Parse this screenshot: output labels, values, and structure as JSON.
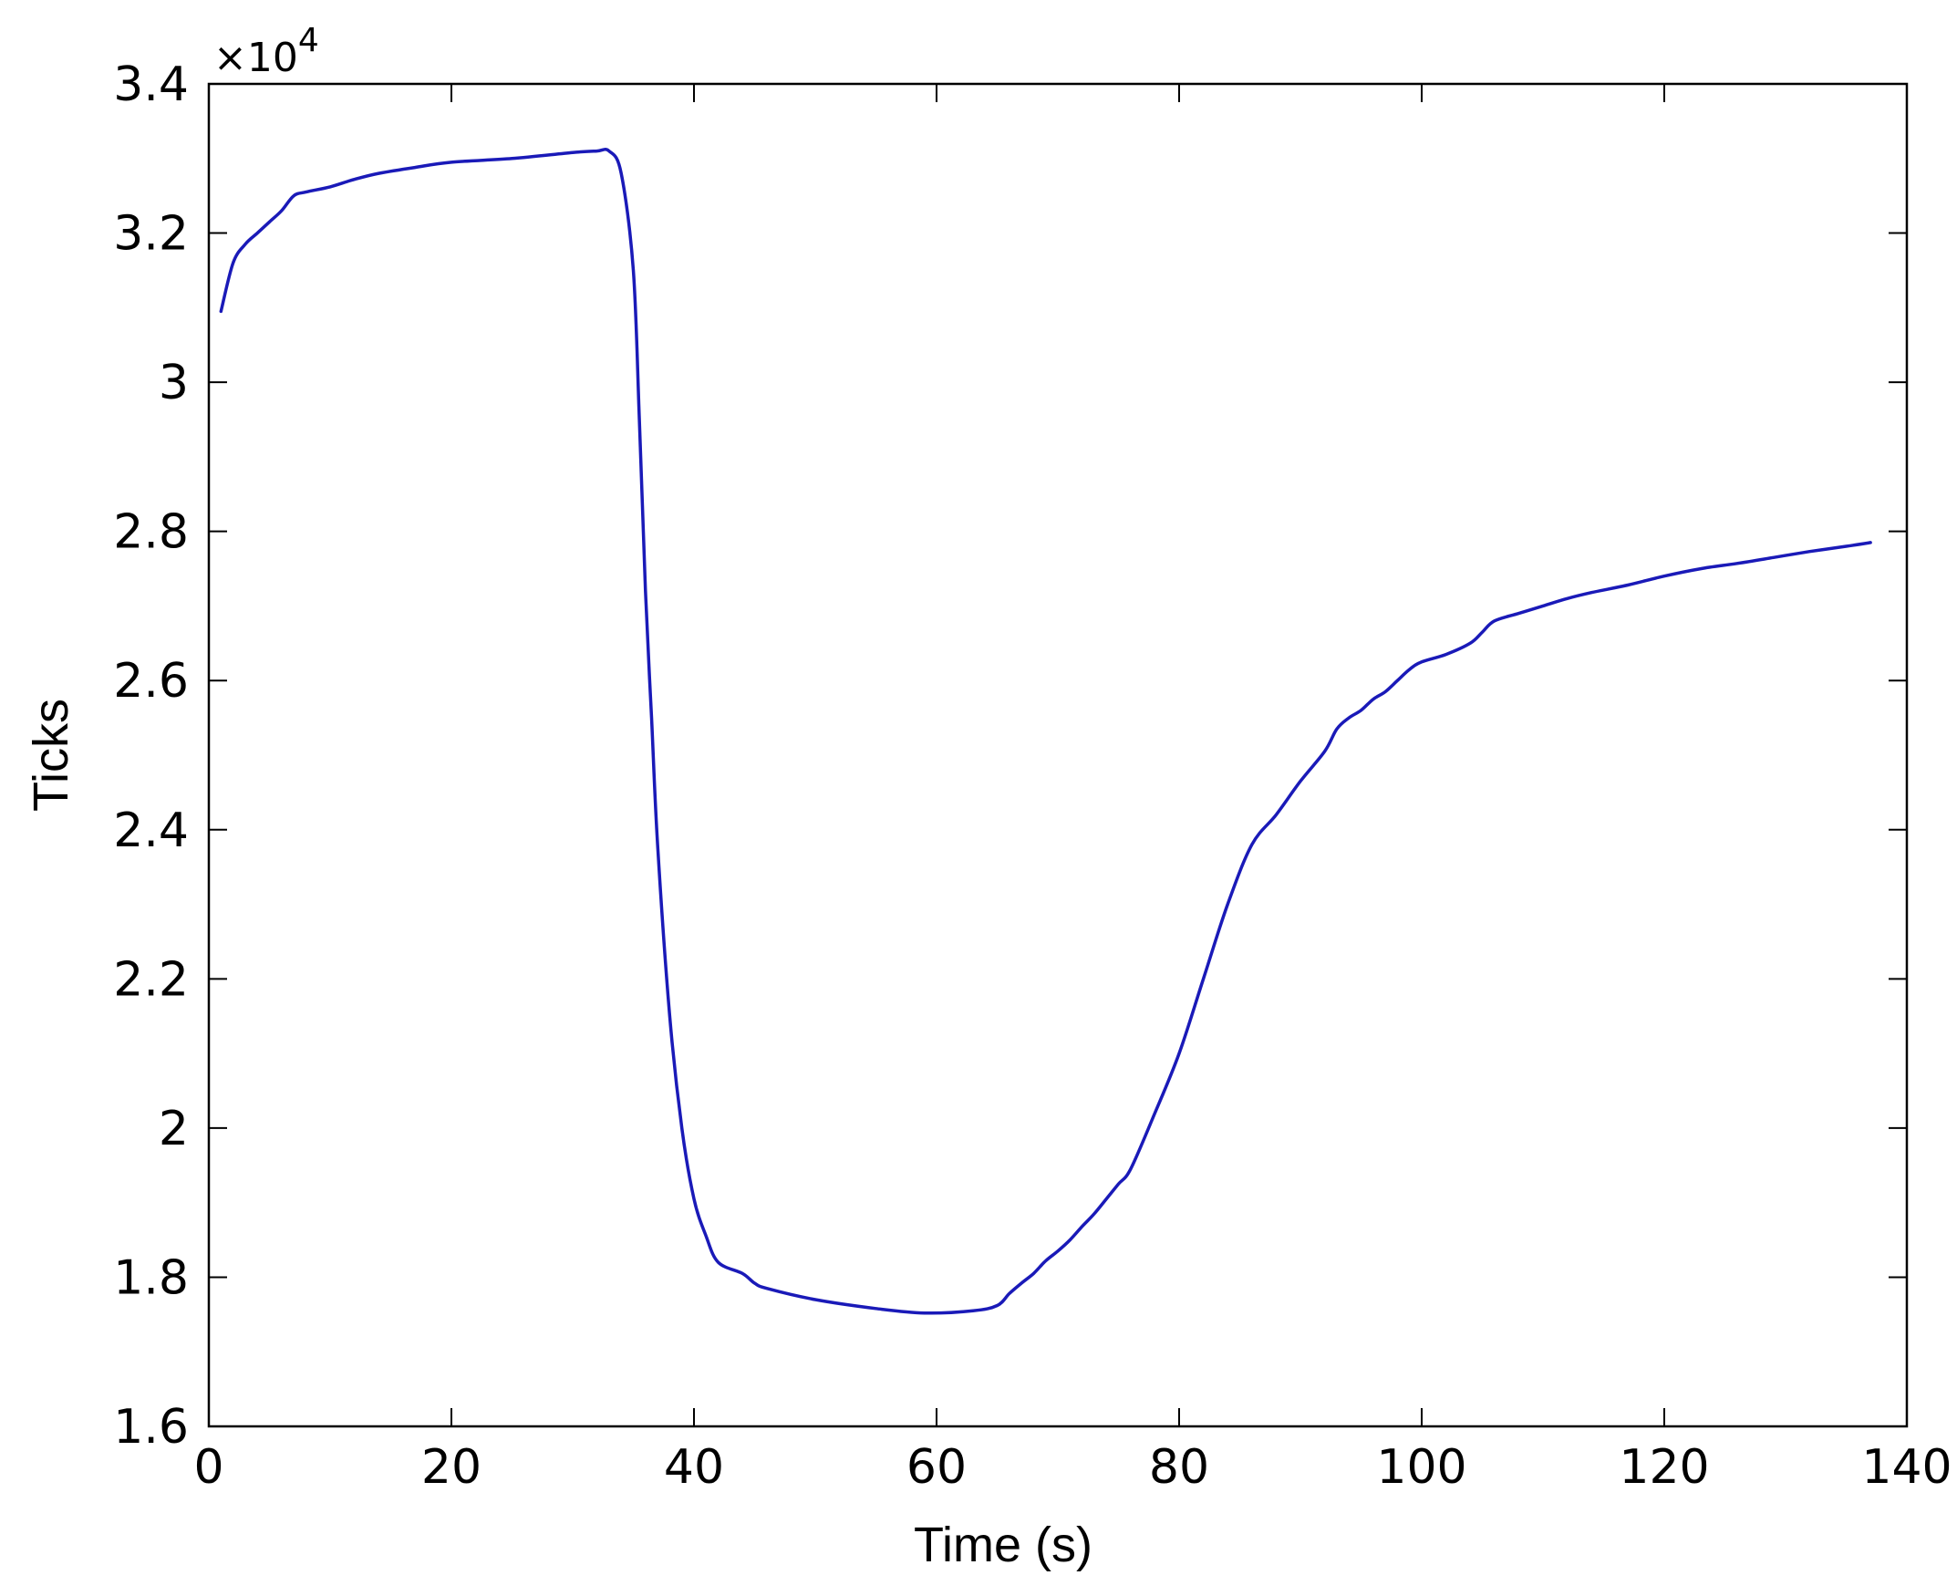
{
  "chart_data": {
    "type": "line",
    "title": "",
    "xlabel": "Time (s)",
    "ylabel": "Ticks",
    "y_multiplier": {
      "prefix": "×10",
      "exponent": "4"
    },
    "xlim": [
      0,
      140
    ],
    "ylim": [
      1.6,
      3.4
    ],
    "x_ticks": [
      0,
      20,
      40,
      60,
      80,
      100,
      120,
      140
    ],
    "y_ticks": [
      1.6,
      1.8,
      2,
      2.2,
      2.4,
      2.6,
      2.8,
      3,
      3.2,
      3.4
    ],
    "x_tick_labels": [
      "0",
      "20",
      "40",
      "60",
      "80",
      "100",
      "120",
      "140"
    ],
    "y_tick_labels": [
      "1.6",
      "1.8",
      "2",
      "2.2",
      "2.4",
      "2.6",
      "2.8",
      "3",
      "3.2",
      "3.4"
    ],
    "grid": false,
    "line_color": "#1a1ab8",
    "series": [
      {
        "x": [
          1,
          2,
          3,
          4,
          5,
          6,
          7,
          8,
          10,
          12,
          14,
          17,
          20,
          25,
          30,
          32,
          33,
          34,
          35,
          35.5,
          36,
          36.5,
          37,
          38,
          39,
          40,
          41,
          42,
          44,
          45,
          46,
          50,
          55,
          59,
          63,
          65,
          66,
          67,
          68,
          69,
          70,
          71,
          72,
          73,
          74,
          75,
          76,
          78,
          80,
          82,
          84,
          86,
          88,
          90,
          92,
          93,
          94,
          95,
          96,
          97,
          98,
          99,
          100,
          102,
          104,
          105,
          106,
          108,
          110,
          112,
          114,
          117,
          120,
          123,
          126,
          129,
          132,
          135,
          137
        ],
        "y": [
          3.095,
          3.16,
          3.185,
          3.2,
          3.215,
          3.23,
          3.25,
          3.255,
          3.262,
          3.272,
          3.28,
          3.288,
          3.295,
          3.3,
          3.308,
          3.31,
          3.31,
          3.28,
          3.15,
          2.95,
          2.72,
          2.55,
          2.38,
          2.15,
          2.0,
          1.905,
          1.855,
          1.82,
          1.805,
          1.792,
          1.785,
          1.77,
          1.758,
          1.752,
          1.755,
          1.762,
          1.778,
          1.792,
          1.805,
          1.822,
          1.835,
          1.85,
          1.868,
          1.885,
          1.905,
          1.925,
          1.945,
          2.02,
          2.1,
          2.2,
          2.3,
          2.38,
          2.42,
          2.465,
          2.505,
          2.535,
          2.55,
          2.56,
          2.575,
          2.585,
          2.6,
          2.615,
          2.625,
          2.635,
          2.65,
          2.665,
          2.68,
          2.69,
          2.7,
          2.71,
          2.718,
          2.728,
          2.74,
          2.75,
          2.757,
          2.765,
          2.773,
          2.78,
          2.785
        ]
      }
    ]
  }
}
